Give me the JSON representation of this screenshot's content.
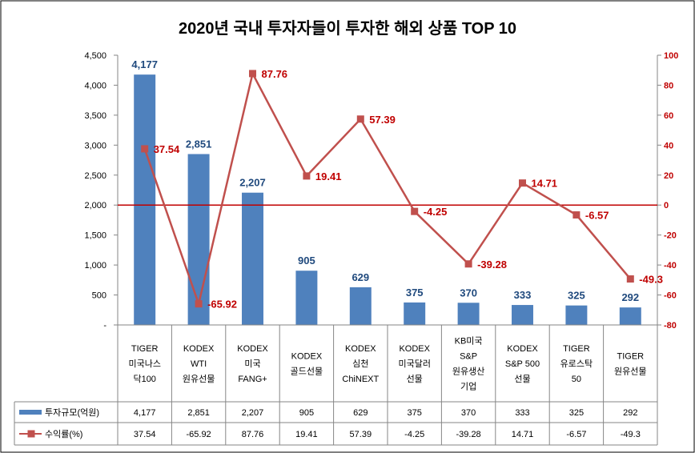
{
  "chart_data": {
    "type": "bar+line",
    "title": "2020년 국내 투자자들이 투자한 해외 상품 TOP 10",
    "categories": [
      [
        "TIGER",
        "미국나스",
        "닥100"
      ],
      [
        "KODEX",
        "WTI",
        "원유선물"
      ],
      [
        "KODEX",
        "미국",
        "FANG+"
      ],
      [
        "KODEX",
        "골드선물"
      ],
      [
        "KODEX",
        "심천",
        "ChiNEXT"
      ],
      [
        "KODEX",
        "미국달러",
        "선물"
      ],
      [
        "KB미국",
        "S&P",
        "원유생산",
        "기업"
      ],
      [
        "KODEX",
        "S&P 500",
        "선물"
      ],
      [
        "TIGER",
        "유로스탁",
        "50"
      ],
      [
        "TIGER",
        "원유선물"
      ]
    ],
    "series": [
      {
        "name": "투자규모(억원)",
        "type": "bar",
        "axis": "left",
        "color": "#4f81bd",
        "values": [
          4177,
          2851,
          2207,
          905,
          629,
          375,
          370,
          333,
          325,
          292
        ],
        "labels": [
          "4,177",
          "2,851",
          "2,207",
          "905",
          "629",
          "375",
          "370",
          "333",
          "325",
          "292"
        ]
      },
      {
        "name": "수익률(%)",
        "type": "line",
        "axis": "right",
        "color": "#c0504d",
        "values": [
          37.54,
          -65.92,
          87.76,
          19.41,
          57.39,
          -4.25,
          -39.28,
          14.71,
          -6.57,
          -49.3
        ],
        "labels": [
          "37.54",
          "-65.92",
          "87.76",
          "19.41",
          "57.39",
          "-4.25",
          "-39.28",
          "14.71",
          "-6.57",
          "-49.3"
        ]
      }
    ],
    "y_left": {
      "range": [
        0,
        4500
      ],
      "ticks": [
        "4,500",
        "4,000",
        "3,500",
        "3,000",
        "2,500",
        "2,000",
        "1,500",
        "1,000",
        "500",
        "-"
      ]
    },
    "y_right": {
      "range": [
        -80,
        100
      ],
      "ticks": [
        "100",
        "80",
        "60",
        "40",
        "20",
        "0",
        "-20",
        "-40",
        "-60",
        "-80"
      ],
      "zero_line_color": "#c00000"
    },
    "table": {
      "rows": [
        {
          "legend": "투자규모(억원)",
          "cells": [
            "4,177",
            "2,851",
            "2,207",
            "905",
            "629",
            "375",
            "370",
            "333",
            "325",
            "292"
          ]
        },
        {
          "legend": "수익률(%)",
          "cells": [
            "37.54",
            "-65.92",
            "87.76",
            "19.41",
            "57.39",
            "-4.25",
            "-39.28",
            "14.71",
            "-6.57",
            "-49.3"
          ]
        }
      ]
    },
    "grid": false,
    "legend": "data-table"
  }
}
